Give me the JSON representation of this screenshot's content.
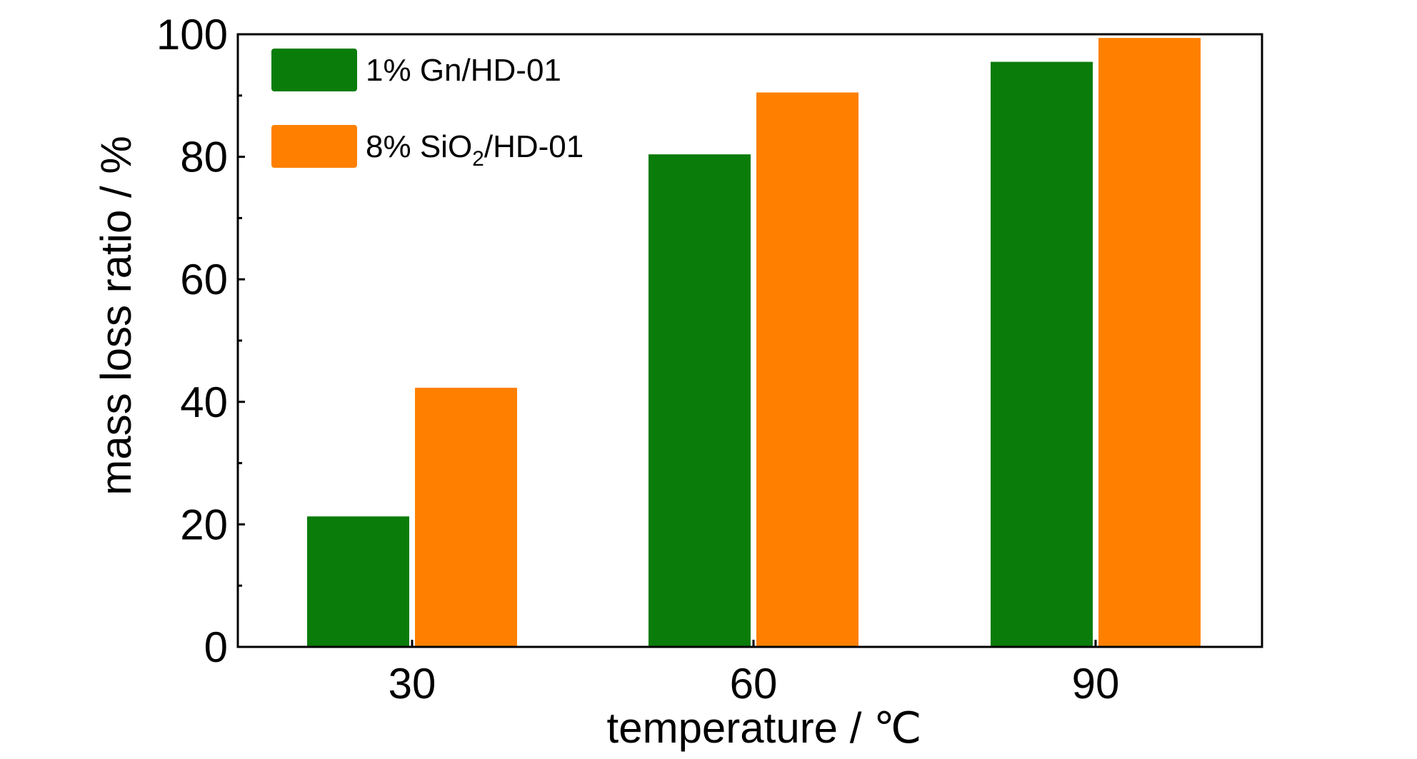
{
  "chart_data": {
    "type": "bar",
    "categories": [
      "30",
      "60",
      "90"
    ],
    "series": [
      {
        "name": "1% Gn/HD-01",
        "color": "#0a7c0a",
        "values": [
          21.3,
          80.4,
          95.5
        ]
      },
      {
        "name": "8% SiO2/HD-01",
        "color": "#ff8000",
        "values": [
          42.3,
          90.5,
          99.4
        ]
      }
    ],
    "legend": {
      "position": "top-left",
      "entries": [
        {
          "prefix": "1% Gn/HD-01",
          "sub": "",
          "suffix": ""
        },
        {
          "prefix": "8% SiO",
          "sub": "2",
          "suffix": "/HD-01"
        }
      ]
    },
    "xlabel": "temperature / ℃",
    "ylabel": "mass loss ratio / %",
    "ylim": [
      0,
      100
    ],
    "yticks": [
      "0",
      "20",
      "40",
      "60",
      "80",
      "100"
    ],
    "grid": false
  }
}
